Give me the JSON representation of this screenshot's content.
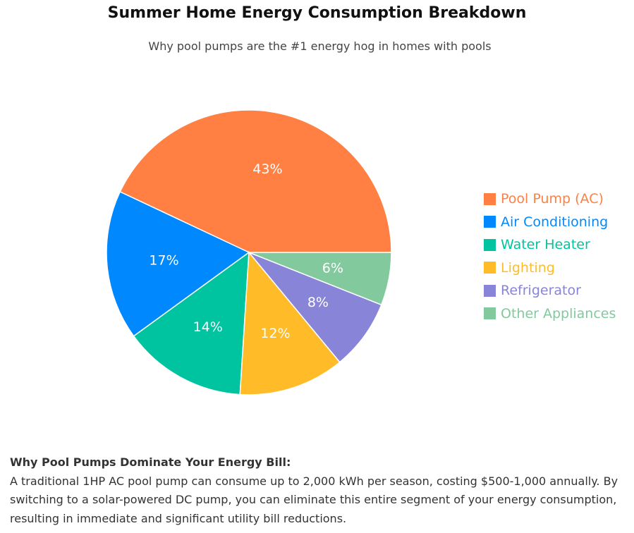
{
  "chart_data": {
    "type": "pie",
    "title": "Summer Home Energy Consumption Breakdown",
    "subtitle": "Why pool pumps are the #1 energy hog in homes with pools",
    "labels": [
      "Pool Pump (AC)",
      "Air Conditioning",
      "Water Heater",
      "Lighting",
      "Refrigerator",
      "Other Appliances"
    ],
    "values": [
      43,
      17,
      14,
      12,
      8,
      6
    ],
    "value_labels": [
      "43%",
      "17%",
      "14%",
      "12%",
      "8%",
      "6%"
    ],
    "colors": [
      "#FF8042",
      "#0088FE",
      "#00C49F",
      "#FFBB28",
      "#8884D8",
      "#82CA9D"
    ],
    "legend_position": "right"
  },
  "note": {
    "heading": "Why Pool Pumps Dominate Your Energy Bill:",
    "body": "A traditional 1HP AC pool pump can consume up to 2,000 kWh per season, costing $500-1,000 annually. By switching to a solar-powered DC pump, you can eliminate this entire segment of your energy consumption, resulting in immediate and significant utility bill reductions."
  }
}
